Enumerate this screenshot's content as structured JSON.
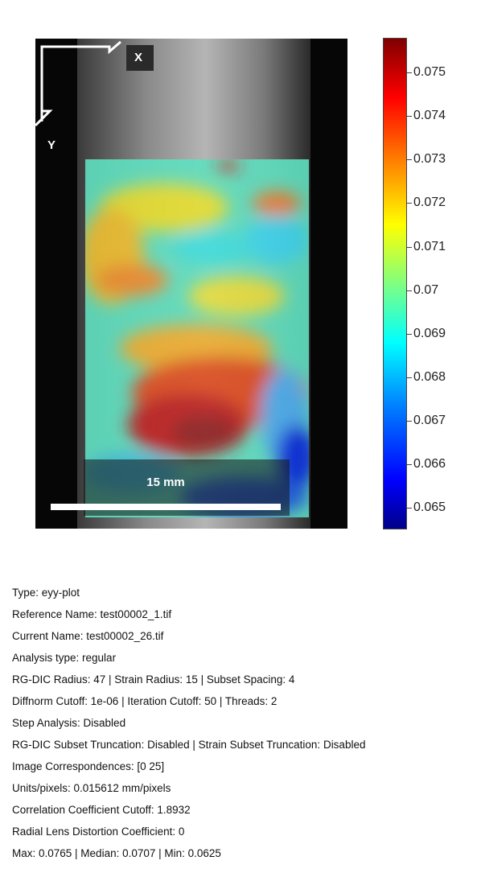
{
  "plot": {
    "x_axis_label": "X",
    "y_axis_label": "Y",
    "scale_bar_label": "15 mm"
  },
  "colorbar": {
    "colormap": "jet",
    "range": [
      0.0645,
      0.0758
    ],
    "tick_labels": [
      "0.075",
      "0.074",
      "0.073",
      "0.072",
      "0.071",
      "0.07",
      "0.069",
      "0.068",
      "0.067",
      "0.066",
      "0.065"
    ],
    "colors": [
      "#00008a",
      "#0000ff",
      "#0080ff",
      "#00ffff",
      "#80ff80",
      "#ffff00",
      "#ff8000",
      "#ff0000",
      "#800000"
    ]
  },
  "info": {
    "lines": [
      "Type: eyy-plot",
      "Reference Name: test00002_1.tif",
      "Current Name: test00002_26.tif",
      "Analysis type: regular",
      "RG-DIC Radius: 47 | Strain Radius: 15 | Subset Spacing: 4",
      "Diffnorm Cutoff: 1e-06 | Iteration Cutoff: 50 | Threads: 2",
      "Step Analysis: Disabled",
      "RG-DIC Subset Truncation: Disabled | Strain Subset Truncation: Disabled",
      "Image Correspondences: [0 25]",
      "Units/pixels: 0.015612 mm/pixels",
      "Correlation Coefficient Cutoff: 1.8932",
      "Radial Lens Distortion Coefficient: 0",
      "Max: 0.0765 | Median: 0.0707 | Min: 0.0625"
    ]
  }
}
